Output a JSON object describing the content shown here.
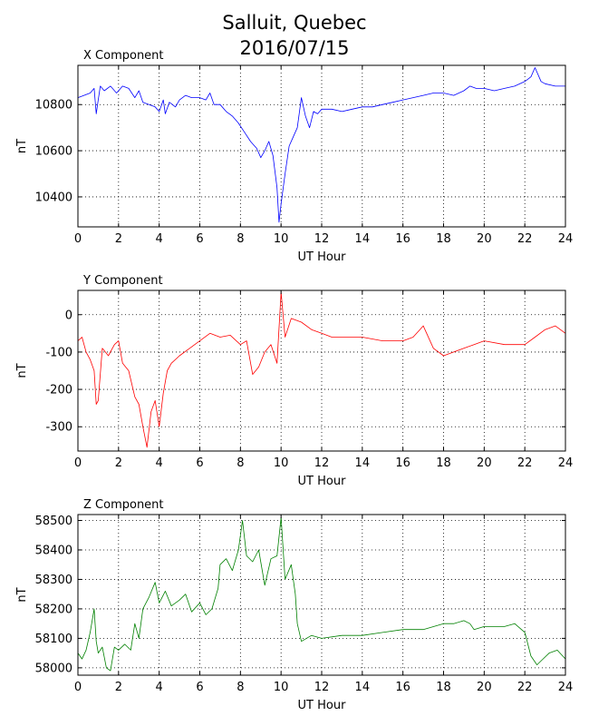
{
  "title": {
    "line1": "Salluit, Quebec",
    "line2": "2016/07/15"
  },
  "chart_data": [
    {
      "type": "line",
      "subtitle": "X Component",
      "xlabel": "UT Hour",
      "ylabel": "nT",
      "xlim": [
        0,
        24
      ],
      "ylim": [
        10270,
        10970
      ],
      "xticks": [
        0,
        2,
        4,
        6,
        8,
        10,
        12,
        14,
        16,
        18,
        20,
        22,
        24
      ],
      "yticks": [
        10400,
        10600,
        10800
      ],
      "grid": true,
      "color": "#0000ff",
      "series": [
        {
          "x": [
            0,
            0.3,
            0.6,
            0.8,
            0.9,
            1.0,
            1.1,
            1.3,
            1.6,
            1.9,
            2.2,
            2.5,
            2.8,
            3.0,
            3.2,
            3.5,
            3.8,
            4.0,
            4.2,
            4.3,
            4.5,
            4.8,
            5.0,
            5.3,
            5.6,
            6.0,
            6.3,
            6.5,
            6.7,
            7.0,
            7.3,
            7.6,
            7.9,
            8.2,
            8.5,
            8.8,
            9.0,
            9.2,
            9.4,
            9.6,
            9.8,
            9.9,
            10.0,
            10.2,
            10.4,
            10.6,
            10.8,
            11.0,
            11.2,
            11.4,
            11.6,
            11.8,
            12.0,
            12.5,
            13.0,
            13.5,
            14.0,
            14.5,
            15.0,
            15.5,
            16.0,
            16.5,
            17.0,
            17.5,
            18.0,
            18.5,
            19.0,
            19.3,
            19.6,
            20.0,
            20.5,
            21.0,
            21.5,
            22.0,
            22.3,
            22.5,
            22.8,
            23.0,
            23.5,
            24.0
          ],
          "y": [
            10830,
            10840,
            10850,
            10870,
            10760,
            10820,
            10880,
            10860,
            10880,
            10850,
            10880,
            10870,
            10830,
            10860,
            10810,
            10800,
            10790,
            10770,
            10820,
            10760,
            10810,
            10790,
            10820,
            10840,
            10830,
            10830,
            10820,
            10850,
            10800,
            10800,
            10770,
            10750,
            10720,
            10680,
            10640,
            10610,
            10570,
            10600,
            10640,
            10580,
            10440,
            10290,
            10370,
            10500,
            10620,
            10660,
            10700,
            10830,
            10750,
            10700,
            10770,
            10760,
            10780,
            10780,
            10770,
            10780,
            10790,
            10790,
            10800,
            10810,
            10820,
            10830,
            10840,
            10850,
            10850,
            10840,
            10860,
            10880,
            10870,
            10870,
            10860,
            10870,
            10880,
            10900,
            10920,
            10960,
            10900,
            10890,
            10880,
            10880
          ]
        }
      ]
    },
    {
      "type": "line",
      "subtitle": "Y Component",
      "xlabel": "UT Hour",
      "ylabel": "nT",
      "xlim": [
        0,
        24
      ],
      "ylim": [
        -365,
        65
      ],
      "xticks": [
        0,
        2,
        4,
        6,
        8,
        10,
        12,
        14,
        16,
        18,
        20,
        22,
        24
      ],
      "yticks": [
        -300,
        -200,
        -100,
        0
      ],
      "grid": true,
      "color": "#ff0000",
      "series": [
        {
          "x": [
            0,
            0.2,
            0.4,
            0.6,
            0.8,
            0.9,
            1.0,
            1.2,
            1.5,
            1.8,
            2.0,
            2.2,
            2.5,
            2.8,
            3.0,
            3.2,
            3.4,
            3.6,
            3.8,
            4.0,
            4.2,
            4.4,
            4.6,
            5.0,
            5.5,
            6.0,
            6.5,
            7.0,
            7.5,
            8.0,
            8.3,
            8.6,
            8.9,
            9.2,
            9.5,
            9.8,
            10.0,
            10.2,
            10.5,
            11.0,
            11.5,
            12.0,
            12.5,
            13.0,
            14.0,
            15.0,
            16.0,
            16.5,
            17.0,
            17.5,
            18.0,
            18.5,
            19.0,
            19.5,
            20.0,
            21.0,
            22.0,
            22.5,
            23.0,
            23.5,
            24.0
          ],
          "y": [
            -70,
            -60,
            -100,
            -120,
            -150,
            -240,
            -230,
            -90,
            -110,
            -80,
            -70,
            -130,
            -150,
            -220,
            -240,
            -300,
            -355,
            -260,
            -230,
            -300,
            -210,
            -150,
            -130,
            -110,
            -90,
            -70,
            -50,
            -60,
            -55,
            -80,
            -70,
            -160,
            -140,
            -100,
            -80,
            -130,
            60,
            -60,
            -10,
            -20,
            -40,
            -50,
            -60,
            -60,
            -60,
            -70,
            -70,
            -60,
            -30,
            -90,
            -110,
            -100,
            -90,
            -80,
            -70,
            -80,
            -80,
            -60,
            -40,
            -30,
            -50
          ]
        }
      ]
    },
    {
      "type": "line",
      "subtitle": "Z Component",
      "xlabel": "UT Hour",
      "ylabel": "nT",
      "xlim": [
        0,
        24
      ],
      "ylim": [
        57975,
        58520
      ],
      "xticks": [
        0,
        2,
        4,
        6,
        8,
        10,
        12,
        14,
        16,
        18,
        20,
        22,
        24
      ],
      "yticks": [
        58000,
        58100,
        58200,
        58300,
        58400,
        58500
      ],
      "grid": true,
      "color": "#008000",
      "series": [
        {
          "x": [
            0,
            0.2,
            0.4,
            0.6,
            0.8,
            0.9,
            1.0,
            1.2,
            1.4,
            1.6,
            1.8,
            2.0,
            2.3,
            2.6,
            2.8,
            3.0,
            3.2,
            3.5,
            3.8,
            4.0,
            4.3,
            4.6,
            5.0,
            5.3,
            5.6,
            6.0,
            6.3,
            6.6,
            6.9,
            7.0,
            7.3,
            7.6,
            7.9,
            8.1,
            8.3,
            8.6,
            8.9,
            9.2,
            9.5,
            9.8,
            10.0,
            10.2,
            10.5,
            10.7,
            10.8,
            11.0,
            11.5,
            12.0,
            13.0,
            14.0,
            15.0,
            16.0,
            17.0,
            18.0,
            18.5,
            19.0,
            19.3,
            19.5,
            20.0,
            21.0,
            21.5,
            22.0,
            22.3,
            22.6,
            22.9,
            23.2,
            23.6,
            24.0
          ],
          "y": [
            58050,
            58030,
            58060,
            58120,
            58200,
            58090,
            58050,
            58070,
            58000,
            57990,
            58070,
            58060,
            58080,
            58060,
            58150,
            58100,
            58200,
            58240,
            58290,
            58220,
            58260,
            58210,
            58230,
            58250,
            58190,
            58220,
            58180,
            58200,
            58270,
            58350,
            58370,
            58330,
            58400,
            58500,
            58380,
            58360,
            58400,
            58280,
            58370,
            58380,
            58510,
            58300,
            58350,
            58250,
            58150,
            58090,
            58110,
            58100,
            58110,
            58110,
            58120,
            58130,
            58130,
            58150,
            58150,
            58160,
            58150,
            58130,
            58140,
            58140,
            58150,
            58120,
            58040,
            58010,
            58030,
            58050,
            58060,
            58030
          ]
        }
      ]
    }
  ]
}
